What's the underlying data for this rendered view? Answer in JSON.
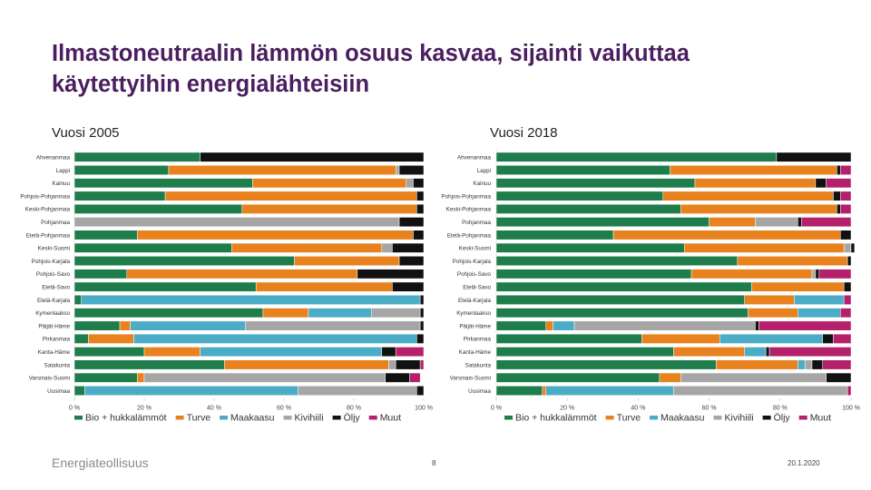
{
  "page": {
    "title": "Ilmastoneutraalin lämmön osuus kasvaa, sijainti vaikuttaa käytettyihin energialähteisiin",
    "logo": "Energiateollisuus",
    "page_number": "8",
    "date": "20.1.2020"
  },
  "colors": {
    "Bio + hukkalämmöt": "#1e7d4b",
    "Turve": "#e8821e",
    "Maakaasu": "#4bacc6",
    "Kivihiili": "#a6a6a6",
    "Öljy": "#111111",
    "Muut": "#b5206a"
  },
  "chart_data": [
    {
      "type": "bar",
      "orientation": "horizontal",
      "stacked": true,
      "title": "Vuosi 2005",
      "categories": [
        "Ahvenanmaa",
        "Lappi",
        "Kainuu",
        "Pohjois-Pohjanmaa",
        "Keski-Pohjanmaa",
        "Pohjanmaa",
        "Etelä-Pohjanmaa",
        "Keski-Suomi",
        "Pohjois-Karjala",
        "Pohjois-Savo",
        "Etelä-Savo",
        "Etelä-Karjala",
        "Kymenlaakso",
        "Päijät-Häme",
        "Pirkanmaa",
        "Kanta-Häme",
        "Satakunta",
        "Varsinais-Suomi",
        "Uusimaa"
      ],
      "xticks": [
        "0 %",
        "20 %",
        "40 %",
        "60 %",
        "80 %",
        "100 %"
      ],
      "xlim": [
        0,
        100
      ],
      "legend_position": "bottom",
      "series": [
        {
          "name": "Bio + hukkalämmöt",
          "values": [
            36,
            27,
            51,
            26,
            48,
            0,
            18,
            45,
            63,
            15,
            52,
            2,
            54,
            13,
            4,
            20,
            43,
            18,
            3
          ]
        },
        {
          "name": "Turve",
          "values": [
            0,
            65,
            44,
            72,
            50,
            0,
            79,
            43,
            30,
            66,
            39,
            0,
            13,
            3,
            13,
            16,
            47,
            2,
            0
          ]
        },
        {
          "name": "Maakaasu",
          "values": [
            0,
            0,
            0,
            0,
            0,
            0,
            0,
            0,
            0,
            0,
            0,
            97,
            18,
            33,
            81,
            52,
            0,
            0,
            61
          ]
        },
        {
          "name": "Kivihiili",
          "values": [
            0,
            1,
            2,
            0,
            0,
            93,
            0,
            3,
            0,
            0,
            0,
            0,
            14,
            50,
            0,
            0,
            2,
            69,
            34
          ]
        },
        {
          "name": "Öljy",
          "values": [
            64,
            7,
            3,
            2,
            2,
            7,
            3,
            9,
            7,
            19,
            9,
            1,
            1,
            1,
            2,
            4,
            7,
            7,
            2
          ]
        },
        {
          "name": "Muut",
          "values": [
            0,
            0,
            0,
            0,
            0,
            0,
            0,
            0,
            0,
            0,
            0,
            0,
            0,
            0,
            0,
            8,
            1,
            3,
            0
          ]
        }
      ]
    },
    {
      "type": "bar",
      "orientation": "horizontal",
      "stacked": true,
      "title": "Vuosi 2018",
      "categories": [
        "Ahvenanmaa",
        "Lappi",
        "Kainuu",
        "Pohjois-Pohjanmaa",
        "Keski-Pohjanmaa",
        "Pohjanmaa",
        "Etelä-Pohjanmaa",
        "Keski-Suomi",
        "Pohjois-Karjala",
        "Pohjois-Savo",
        "Etelä-Savo",
        "Etelä-Karjala",
        "Kymenlaakso",
        "Päijät-Häme",
        "Pirkanmaa",
        "Kanta-Häme",
        "Satakunta",
        "Varsinais-Suomi",
        "Uusimaa"
      ],
      "xticks": [
        "0 %",
        "20 %",
        "40 %",
        "60 %",
        "80 %",
        "100 %"
      ],
      "xlim": [
        0,
        100
      ],
      "legend_position": "bottom",
      "series": [
        {
          "name": "Bio + hukkalämmöt",
          "values": [
            79,
            49,
            56,
            47,
            52,
            60,
            33,
            53,
            68,
            55,
            72,
            70,
            71,
            14,
            41,
            50,
            62,
            46,
            13
          ]
        },
        {
          "name": "Turve",
          "values": [
            0,
            47,
            34,
            48,
            44,
            13,
            64,
            45,
            31,
            34,
            26,
            14,
            14,
            2,
            22,
            20,
            23,
            6,
            1
          ]
        },
        {
          "name": "Maakaasu",
          "values": [
            0,
            0,
            0,
            0,
            0,
            0,
            0,
            0,
            0,
            0,
            0,
            14,
            12,
            6,
            29,
            6,
            2,
            0,
            36
          ]
        },
        {
          "name": "Kivihiili",
          "values": [
            0,
            0,
            0,
            0,
            0,
            12,
            0,
            2,
            0,
            1,
            0,
            0,
            0,
            51,
            0,
            0,
            2,
            41,
            49
          ]
        },
        {
          "name": "Öljy",
          "values": [
            21,
            1,
            3,
            2,
            1,
            1,
            3,
            1,
            1,
            1,
            2,
            0,
            0,
            1,
            3,
            1,
            3,
            7,
            0
          ]
        },
        {
          "name": "Muut",
          "values": [
            0,
            3,
            7,
            3,
            3,
            14,
            0,
            0,
            0,
            9,
            0,
            2,
            3,
            26,
            5,
            23,
            8,
            0,
            1
          ]
        }
      ]
    }
  ]
}
